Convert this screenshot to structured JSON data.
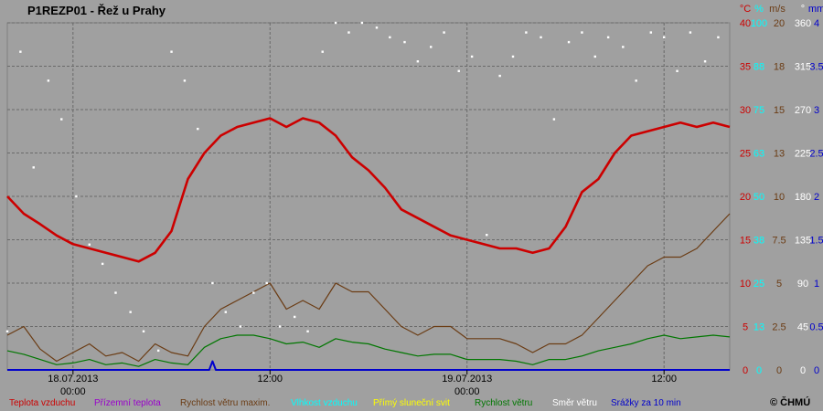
{
  "title": "P1REZP01 - Řež u Prahy",
  "credit": "© ČHMÚ",
  "colors": {
    "background": "#a0a0a0",
    "temperature": "#cc0000",
    "ground_temp": "#9900cc",
    "wind_max": "#6b3c14",
    "humidity": "#00ffff",
    "sunshine": "#ffff00",
    "wind_speed": "#007700",
    "wind_dir": "#ffffff",
    "precip": "#0000cc"
  },
  "chart_data": {
    "type": "line",
    "x_range_hours": [
      0,
      44
    ],
    "x_ticks": [
      {
        "hour": 4,
        "label": "18.07.2013",
        "label2": "00:00"
      },
      {
        "hour": 16,
        "label": "12:00",
        "label2": ""
      },
      {
        "hour": 28,
        "label": "19.07.2013",
        "label2": "00:00"
      },
      {
        "hour": 40,
        "label": "12:00",
        "label2": ""
      }
    ],
    "y_axes": [
      {
        "unit": "°C",
        "color": "#cc0000",
        "ticks": [
          "0",
          "5",
          "10",
          "15",
          "20",
          "25",
          "30",
          "35",
          "40"
        ],
        "range": [
          0,
          40
        ]
      },
      {
        "unit": "%",
        "color": "#00ffff",
        "ticks": [
          "0",
          "13",
          "25",
          "38",
          "50",
          "63",
          "75",
          "88",
          "100"
        ],
        "range": [
          0,
          100
        ]
      },
      {
        "unit": "m/s",
        "color": "#6b3c14",
        "ticks": [
          "0",
          "2.5",
          "5",
          "7.5",
          "10",
          "13",
          "15",
          "18",
          "20"
        ],
        "range": [
          0,
          20
        ]
      },
      {
        "unit": "°",
        "color": "#ffffff",
        "ticks": [
          "0",
          "45",
          "90",
          "135",
          "180",
          "225",
          "270",
          "315",
          "360"
        ],
        "range": [
          0,
          360
        ]
      },
      {
        "unit": "mm",
        "color": "#0000cc",
        "ticks": [
          "0",
          "0.5",
          "1",
          "1.5",
          "2",
          "2.5",
          "3",
          "3.5",
          "4"
        ],
        "range": [
          0,
          4
        ]
      }
    ],
    "series": [
      {
        "name": "Teplota vzduchu",
        "unit": "°C",
        "x": [
          0,
          1,
          2,
          3,
          4,
          5,
          6,
          7,
          8,
          9,
          10,
          11,
          12,
          13,
          14,
          15,
          16,
          17,
          18,
          19,
          20,
          21,
          22,
          23,
          24,
          25,
          26,
          27,
          28,
          29,
          30,
          31,
          32,
          33,
          34,
          35,
          36,
          37,
          38,
          39,
          40,
          41,
          42,
          43,
          44
        ],
        "y": [
          20,
          18,
          16.8,
          15.5,
          14.5,
          14,
          13.5,
          13,
          12.5,
          13.5,
          16,
          22,
          25,
          27,
          28,
          28.5,
          29,
          28,
          29,
          28.5,
          27,
          24.5,
          23,
          21,
          18.5,
          17.5,
          16.5,
          15.5,
          15,
          14.5,
          14,
          14,
          13.5,
          14,
          16.5,
          20.5,
          22,
          25,
          27,
          27.5,
          28,
          28.5,
          28,
          28.5,
          28
        ]
      },
      {
        "name": "Rychlost větru maxim.",
        "unit": "m/s",
        "x": [
          0,
          1,
          2,
          3,
          4,
          5,
          6,
          7,
          8,
          9,
          10,
          11,
          12,
          13,
          14,
          15,
          16,
          17,
          18,
          19,
          20,
          21,
          22,
          23,
          24,
          25,
          26,
          27,
          28,
          29,
          30,
          31,
          32,
          33,
          34,
          35,
          36,
          37,
          38,
          39,
          40,
          41,
          42,
          43,
          44
        ],
        "y": [
          2,
          2.5,
          1.2,
          0.5,
          1,
          1.5,
          0.8,
          1,
          0.5,
          1.5,
          1,
          0.8,
          2.5,
          3.5,
          4,
          4.5,
          5,
          3.5,
          4,
          3.5,
          5,
          4.5,
          4.5,
          3.5,
          2.5,
          2,
          2.5,
          2.5,
          1.8,
          1.8,
          1.8,
          1.5,
          1,
          1.5,
          1.5,
          2,
          3,
          4,
          5,
          6,
          6.5,
          6.5,
          7,
          8,
          9
        ]
      },
      {
        "name": "Rychlost větru",
        "unit": "m/s",
        "x": [
          0,
          1,
          2,
          3,
          4,
          5,
          6,
          7,
          8,
          9,
          10,
          11,
          12,
          13,
          14,
          15,
          16,
          17,
          18,
          19,
          20,
          21,
          22,
          23,
          24,
          25,
          26,
          27,
          28,
          29,
          30,
          31,
          32,
          33,
          34,
          35,
          36,
          37,
          38,
          39,
          40,
          41,
          42,
          43,
          44
        ],
        "y": [
          1.1,
          0.9,
          0.6,
          0.3,
          0.4,
          0.6,
          0.3,
          0.4,
          0.2,
          0.6,
          0.4,
          0.3,
          1.3,
          1.8,
          2,
          2,
          1.8,
          1.5,
          1.6,
          1.3,
          1.8,
          1.6,
          1.5,
          1.2,
          1,
          0.8,
          0.9,
          0.9,
          0.6,
          0.6,
          0.6,
          0.5,
          0.3,
          0.6,
          0.6,
          0.8,
          1.1,
          1.3,
          1.5,
          1.8,
          2,
          1.8,
          1.9,
          2,
          1.9
        ]
      },
      {
        "name": "Směr větru",
        "unit": "°",
        "x": [
          0,
          0.8,
          1.6,
          2.5,
          3.3,
          4.2,
          5,
          5.8,
          6.6,
          7.5,
          8.3,
          9.2,
          10,
          10.8,
          11.6,
          12.5,
          13.3,
          14.2,
          15,
          15.8,
          16.6,
          17.5,
          18.3,
          19.2,
          20,
          20.8,
          21.6,
          22.5,
          23.3,
          24.2,
          25,
          25.8,
          26.6,
          27.5,
          28.3,
          29.2,
          30,
          30.8,
          31.6,
          32.5,
          33.3,
          34.2,
          35,
          35.8,
          36.6,
          37.5,
          38.3,
          39.2,
          40,
          40.8,
          41.6,
          42.5,
          43.3
        ],
        "y": [
          40,
          330,
          210,
          300,
          260,
          180,
          130,
          110,
          80,
          60,
          40,
          20,
          330,
          300,
          250,
          90,
          60,
          45,
          80,
          90,
          45,
          55,
          40,
          330,
          360,
          350,
          360,
          355,
          345,
          340,
          320,
          335,
          350,
          310,
          325,
          140,
          305,
          325,
          350,
          345,
          260,
          340,
          350,
          325,
          345,
          335,
          300,
          350,
          345,
          310,
          350,
          320,
          345
        ]
      },
      {
        "name": "Srážky za 10 min",
        "unit": "mm",
        "x": [
          0,
          12.3,
          12.5,
          12.7,
          44
        ],
        "y": [
          0,
          0,
          0.1,
          0,
          0
        ]
      }
    ],
    "legend": [
      {
        "label": "Teplota vzduchu",
        "color": "#cc0000"
      },
      {
        "label": "Přízemní teplota",
        "color": "#9900cc"
      },
      {
        "label": "Rychlost větru maxim.",
        "color": "#6b3c14"
      },
      {
        "label": "Vlhkost vzduchu",
        "color": "#00ffff"
      },
      {
        "label": "Přímý sluneční svit",
        "color": "#ffff00"
      },
      {
        "label": "Rychlost větru",
        "color": "#007700"
      },
      {
        "label": "Směr větru",
        "color": "#ffffff"
      },
      {
        "label": "Srážky za 10 min",
        "color": "#0000cc"
      }
    ],
    "grid": true
  }
}
